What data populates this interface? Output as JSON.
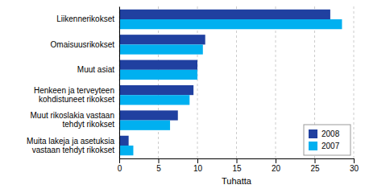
{
  "chart_data": {
    "type": "bar",
    "orientation": "horizontal",
    "categories": [
      "Liikennerikokset",
      "Omaisuusrikokset",
      "Muut asiat",
      "Henkeen ja terveyteen\nkohdistuneet rikokset",
      "Muut rikoslakia vastaan\ntehdyt rikokset",
      "Muita lakeja ja asetuksia\nvastaan tehdyt rikokset"
    ],
    "series": [
      {
        "name": "2008",
        "color": "#2040a0",
        "values": [
          27.0,
          11.0,
          10.0,
          9.5,
          7.5,
          1.2
        ]
      },
      {
        "name": "2007",
        "color": "#00b0f0",
        "values": [
          28.5,
          10.7,
          10.0,
          9.0,
          6.5,
          1.8
        ]
      }
    ],
    "xlabel": "Tuhatta",
    "xlim": [
      0,
      30
    ],
    "xticks": [
      0,
      5,
      10,
      15,
      20,
      25,
      30
    ],
    "grid": true,
    "legend": "lower right"
  }
}
